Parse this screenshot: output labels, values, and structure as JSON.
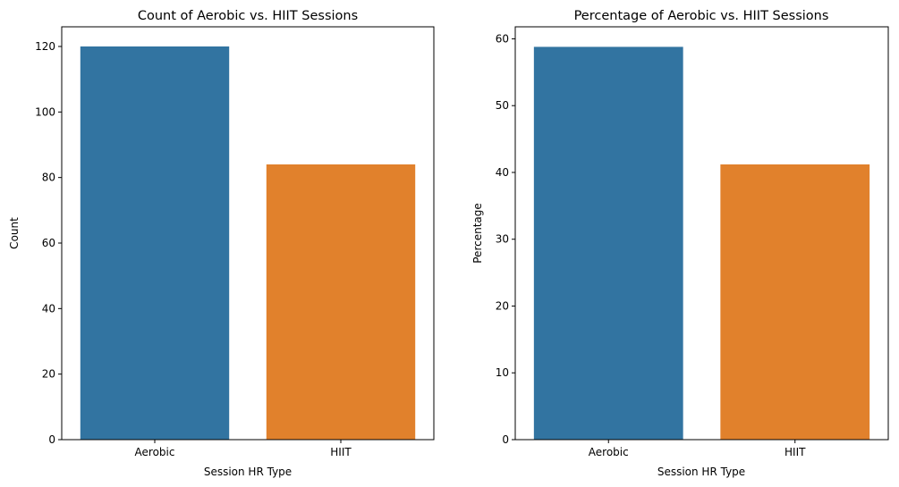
{
  "chart_data": [
    {
      "type": "bar",
      "title": "Count of Aerobic vs. HIIT Sessions",
      "xlabel": "Session HR Type",
      "ylabel": "Count",
      "categories": [
        "Aerobic",
        "HIIT"
      ],
      "values": [
        120,
        84
      ],
      "colors": [
        "#3274a1",
        "#e1812c"
      ],
      "ylim": [
        0,
        126
      ],
      "yticks": [
        0,
        20,
        40,
        60,
        80,
        100,
        120
      ],
      "grid": false
    },
    {
      "type": "bar",
      "title": "Percentage of Aerobic vs. HIIT Sessions",
      "xlabel": "Session HR Type",
      "ylabel": "Percentage",
      "categories": [
        "Aerobic",
        "HIIT"
      ],
      "values": [
        58.8,
        41.2
      ],
      "colors": [
        "#3274a1",
        "#e1812c"
      ],
      "ylim": [
        0,
        61.8
      ],
      "yticks": [
        0,
        10,
        20,
        30,
        40,
        50,
        60
      ],
      "grid": false
    }
  ]
}
